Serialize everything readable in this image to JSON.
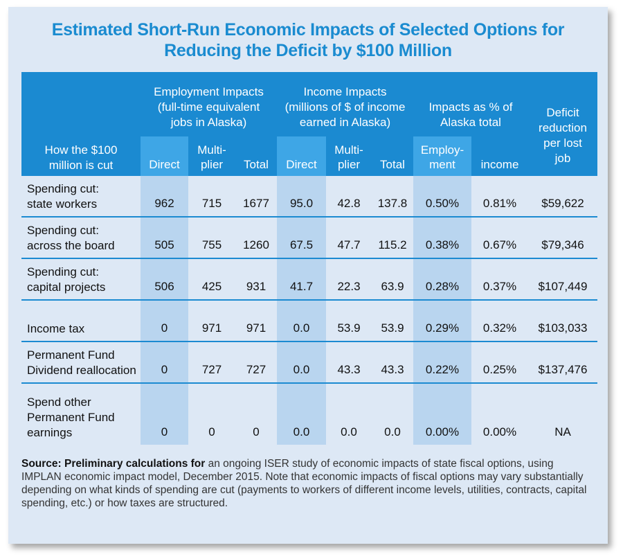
{
  "title_line1": "Estimated Short-Run Economic Impacts of Selected Options for",
  "title_line2": "Reducing the Deficit by $100 Million",
  "header": {
    "employment_group": [
      "Employment Impacts",
      "(full-time equivalent",
      "jobs in Alaska)"
    ],
    "income_group": [
      "Income Impacts",
      "(millions of $ of income",
      "earned in Alaska)"
    ],
    "pct_group": [
      "Impacts as % of",
      "Alaska total"
    ],
    "deficit": [
      "Deficit",
      "reduction",
      "per lost",
      "job"
    ],
    "row_label": [
      "How the $100",
      "million is cut"
    ],
    "sub": {
      "emp_direct": "Direct",
      "emp_multiplier": [
        "Multi-",
        "plier"
      ],
      "emp_total": "Total",
      "inc_direct": "Direct",
      "inc_multiplier": [
        "Multi-",
        "plier"
      ],
      "inc_total": "Total",
      "pct_employment": [
        "Employ-",
        "ment"
      ],
      "pct_income": "income"
    }
  },
  "rows": [
    {
      "label": [
        "Spending cut:",
        "state workers"
      ],
      "values": [
        "962",
        "715",
        "1677",
        "95.0",
        "42.8",
        "137.8",
        "0.50%",
        "0.81%",
        "$59,622"
      ]
    },
    {
      "label": [
        "Spending cut:",
        "across the board"
      ],
      "values": [
        "505",
        "755",
        "1260",
        "67.5",
        "47.7",
        "115.2",
        "0.38%",
        "0.67%",
        "$79,346"
      ]
    },
    {
      "label": [
        "Spending cut:",
        "capital projects"
      ],
      "values": [
        "506",
        "425",
        "931",
        "41.7",
        "22.3",
        "63.9",
        "0.28%",
        "0.37%",
        "$107,449"
      ]
    },
    {
      "label": [
        "Income tax"
      ],
      "values": [
        "0",
        "971",
        "971",
        "0.0",
        "53.9",
        "53.9",
        "0.29%",
        "0.32%",
        "$103,033"
      ]
    },
    {
      "label": [
        "Permanent Fund",
        "Dividend reallocation"
      ],
      "values": [
        "0",
        "727",
        "727",
        "0.0",
        "43.3",
        "43.3",
        "0.22%",
        "0.25%",
        "$137,476"
      ]
    },
    {
      "label": [
        "Spend other",
        "Permanent Fund",
        "earnings"
      ],
      "values": [
        "0",
        "0",
        "0",
        "0.0",
        "0.0",
        "0.0",
        "0.00%",
        "0.00%",
        "NA"
      ]
    }
  ],
  "source": {
    "lead": "Source:  Preliminary calculations for",
    "body": " an ongoing ISER study of economic impacts of state fiscal options, using IMPLAN economic impact model, December 2015.  Note that economic impacts of fiscal options may vary substantially depending on what kinds of spending are cut (payments to workers of different income levels, utilities, contracts, capital spending, etc.) or how taxes are structured."
  },
  "colors": {
    "header_blue": "#1b8ad1",
    "header_light": "#3ea6e6",
    "title_blue": "#1a8bd0",
    "band_blue": "#b9d5ef",
    "card_bg": "#dde8f5"
  }
}
